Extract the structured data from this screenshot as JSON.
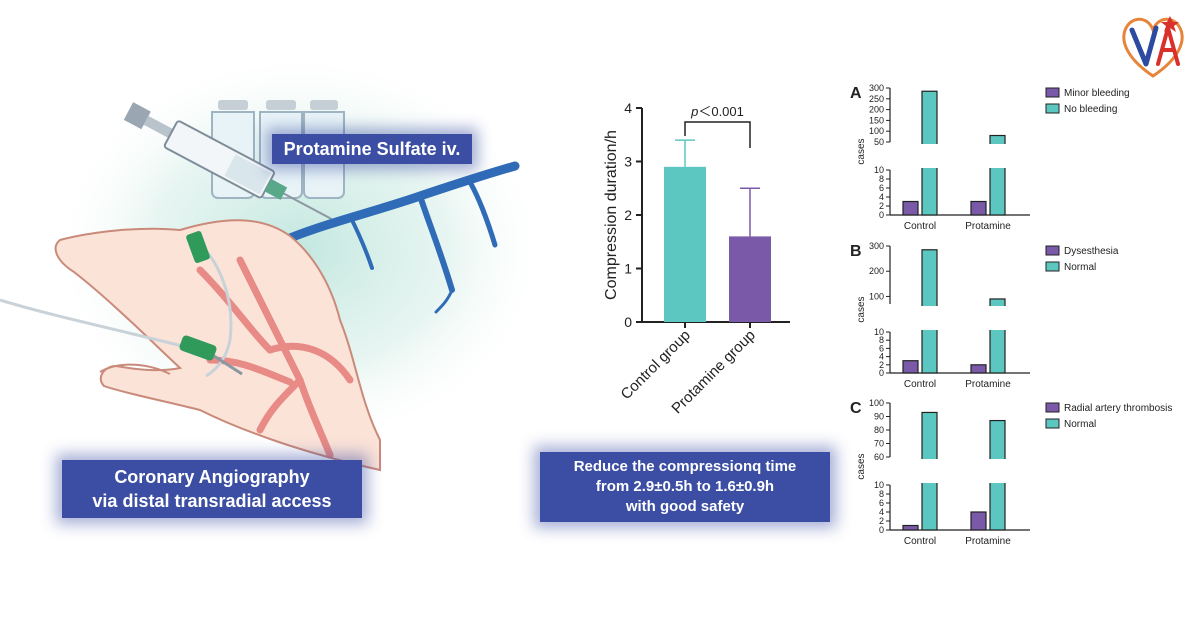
{
  "illustration": {
    "drug_label": "Protamine Sulfate iv.",
    "procedure_label_line1": "Coronary Angiography",
    "procedure_label_line2": "via distal transradial access"
  },
  "summary": {
    "line1": "Reduce the compressionq time",
    "line2": "from 2.9±0.5h to 1.6±0.9h",
    "line3": "with good safety"
  },
  "colors": {
    "teal": "#5cc7c0",
    "purple": "#7a5aa8",
    "label_blue": "#3b4ea3"
  },
  "chart_data": [
    {
      "type": "bar",
      "ylabel": "Compression duration/h",
      "categories": [
        "Control group",
        "Protamine group"
      ],
      "values": [
        2.9,
        1.6
      ],
      "errors": [
        0.5,
        0.9
      ],
      "ylim": [
        0,
        4
      ],
      "yticks": [
        "0",
        "1",
        "2",
        "3",
        "4"
      ],
      "annotation_p": "p",
      "annotation_rest": "＜0.001"
    },
    {
      "type": "bar",
      "panel": "A",
      "ylabel": "cases",
      "categories": [
        "Control",
        "Protamine"
      ],
      "series": [
        {
          "name": "Minor bleeding",
          "values": [
            3,
            3
          ]
        },
        {
          "name": "No bleeding",
          "values": [
            285,
            80
          ]
        }
      ],
      "axis_break": {
        "lower": [
          0,
          10
        ],
        "upper": [
          50,
          300
        ]
      },
      "lower_ticks": [
        "0",
        "2",
        "4",
        "6",
        "8",
        "10"
      ],
      "upper_ticks": [
        "50",
        "100",
        "150",
        "200",
        "250",
        "300"
      ]
    },
    {
      "type": "bar",
      "panel": "B",
      "ylabel": "cases",
      "categories": [
        "Control",
        "Protamine"
      ],
      "series": [
        {
          "name": "Dysesthesia",
          "values": [
            3,
            2
          ]
        },
        {
          "name": "Normal",
          "values": [
            285,
            90
          ]
        }
      ],
      "axis_break": {
        "lower": [
          0,
          10
        ],
        "upper": [
          70,
          300
        ]
      },
      "lower_ticks": [
        "0",
        "2",
        "4",
        "6",
        "8",
        "10"
      ],
      "upper_ticks": [
        "100",
        "200",
        "300"
      ]
    },
    {
      "type": "bar",
      "panel": "C",
      "ylabel": "cases",
      "categories": [
        "Control",
        "Protamine"
      ],
      "series": [
        {
          "name": "Radial artery thrombosis",
          "values": [
            1,
            4
          ]
        },
        {
          "name": "Normal",
          "values": [
            93,
            87
          ]
        }
      ],
      "axis_break": {
        "lower": [
          0,
          10
        ],
        "upper": [
          60,
          100
        ]
      },
      "lower_ticks": [
        "0",
        "2",
        "4",
        "6",
        "8",
        "10"
      ],
      "upper_ticks": [
        "60",
        "70",
        "80",
        "90",
        "100"
      ]
    }
  ]
}
